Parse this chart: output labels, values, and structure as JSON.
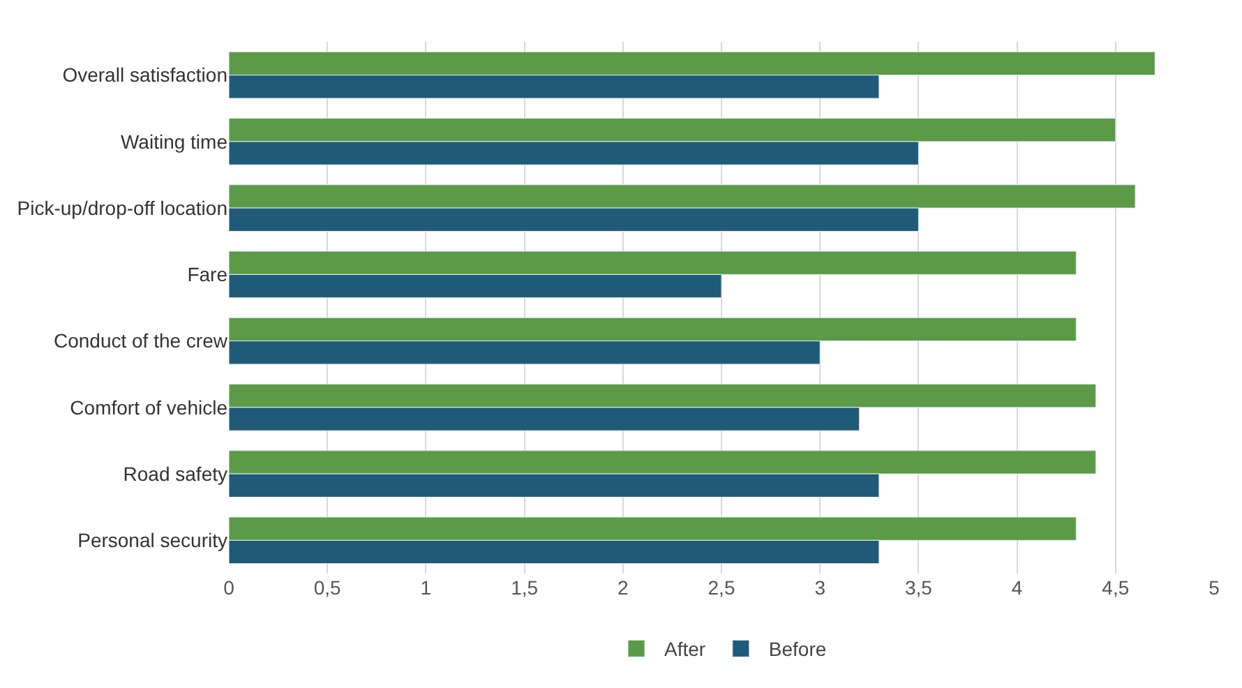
{
  "chart_data": {
    "type": "bar",
    "orientation": "horizontal",
    "categories": [
      "Overall satisfaction",
      "Waiting time",
      "Pick-up/drop-off location",
      "Fare",
      "Conduct of the crew",
      "Comfort of vehicle",
      "Road safety",
      "Personal security"
    ],
    "series": [
      {
        "name": "After",
        "color": "#5b9a46",
        "values": [
          4.7,
          4.5,
          4.6,
          4.3,
          4.3,
          4.4,
          4.4,
          4.3
        ]
      },
      {
        "name": "Before",
        "color": "#1f5a78",
        "values": [
          3.3,
          3.5,
          3.5,
          2.5,
          3.0,
          3.2,
          3.3,
          3.3
        ]
      }
    ],
    "xlim": [
      0,
      5
    ],
    "xticks": [
      0,
      {
        "value": 0.5,
        "label": "0,5"
      },
      1,
      {
        "value": 1.5,
        "label": "1,5"
      },
      2,
      {
        "value": 2.5,
        "label": "2,5"
      },
      3,
      {
        "value": 3.5,
        "label": "3,5"
      },
      4,
      {
        "value": 4.5,
        "label": "4,5"
      },
      5
    ],
    "grid": "x",
    "legend": "bottom"
  }
}
